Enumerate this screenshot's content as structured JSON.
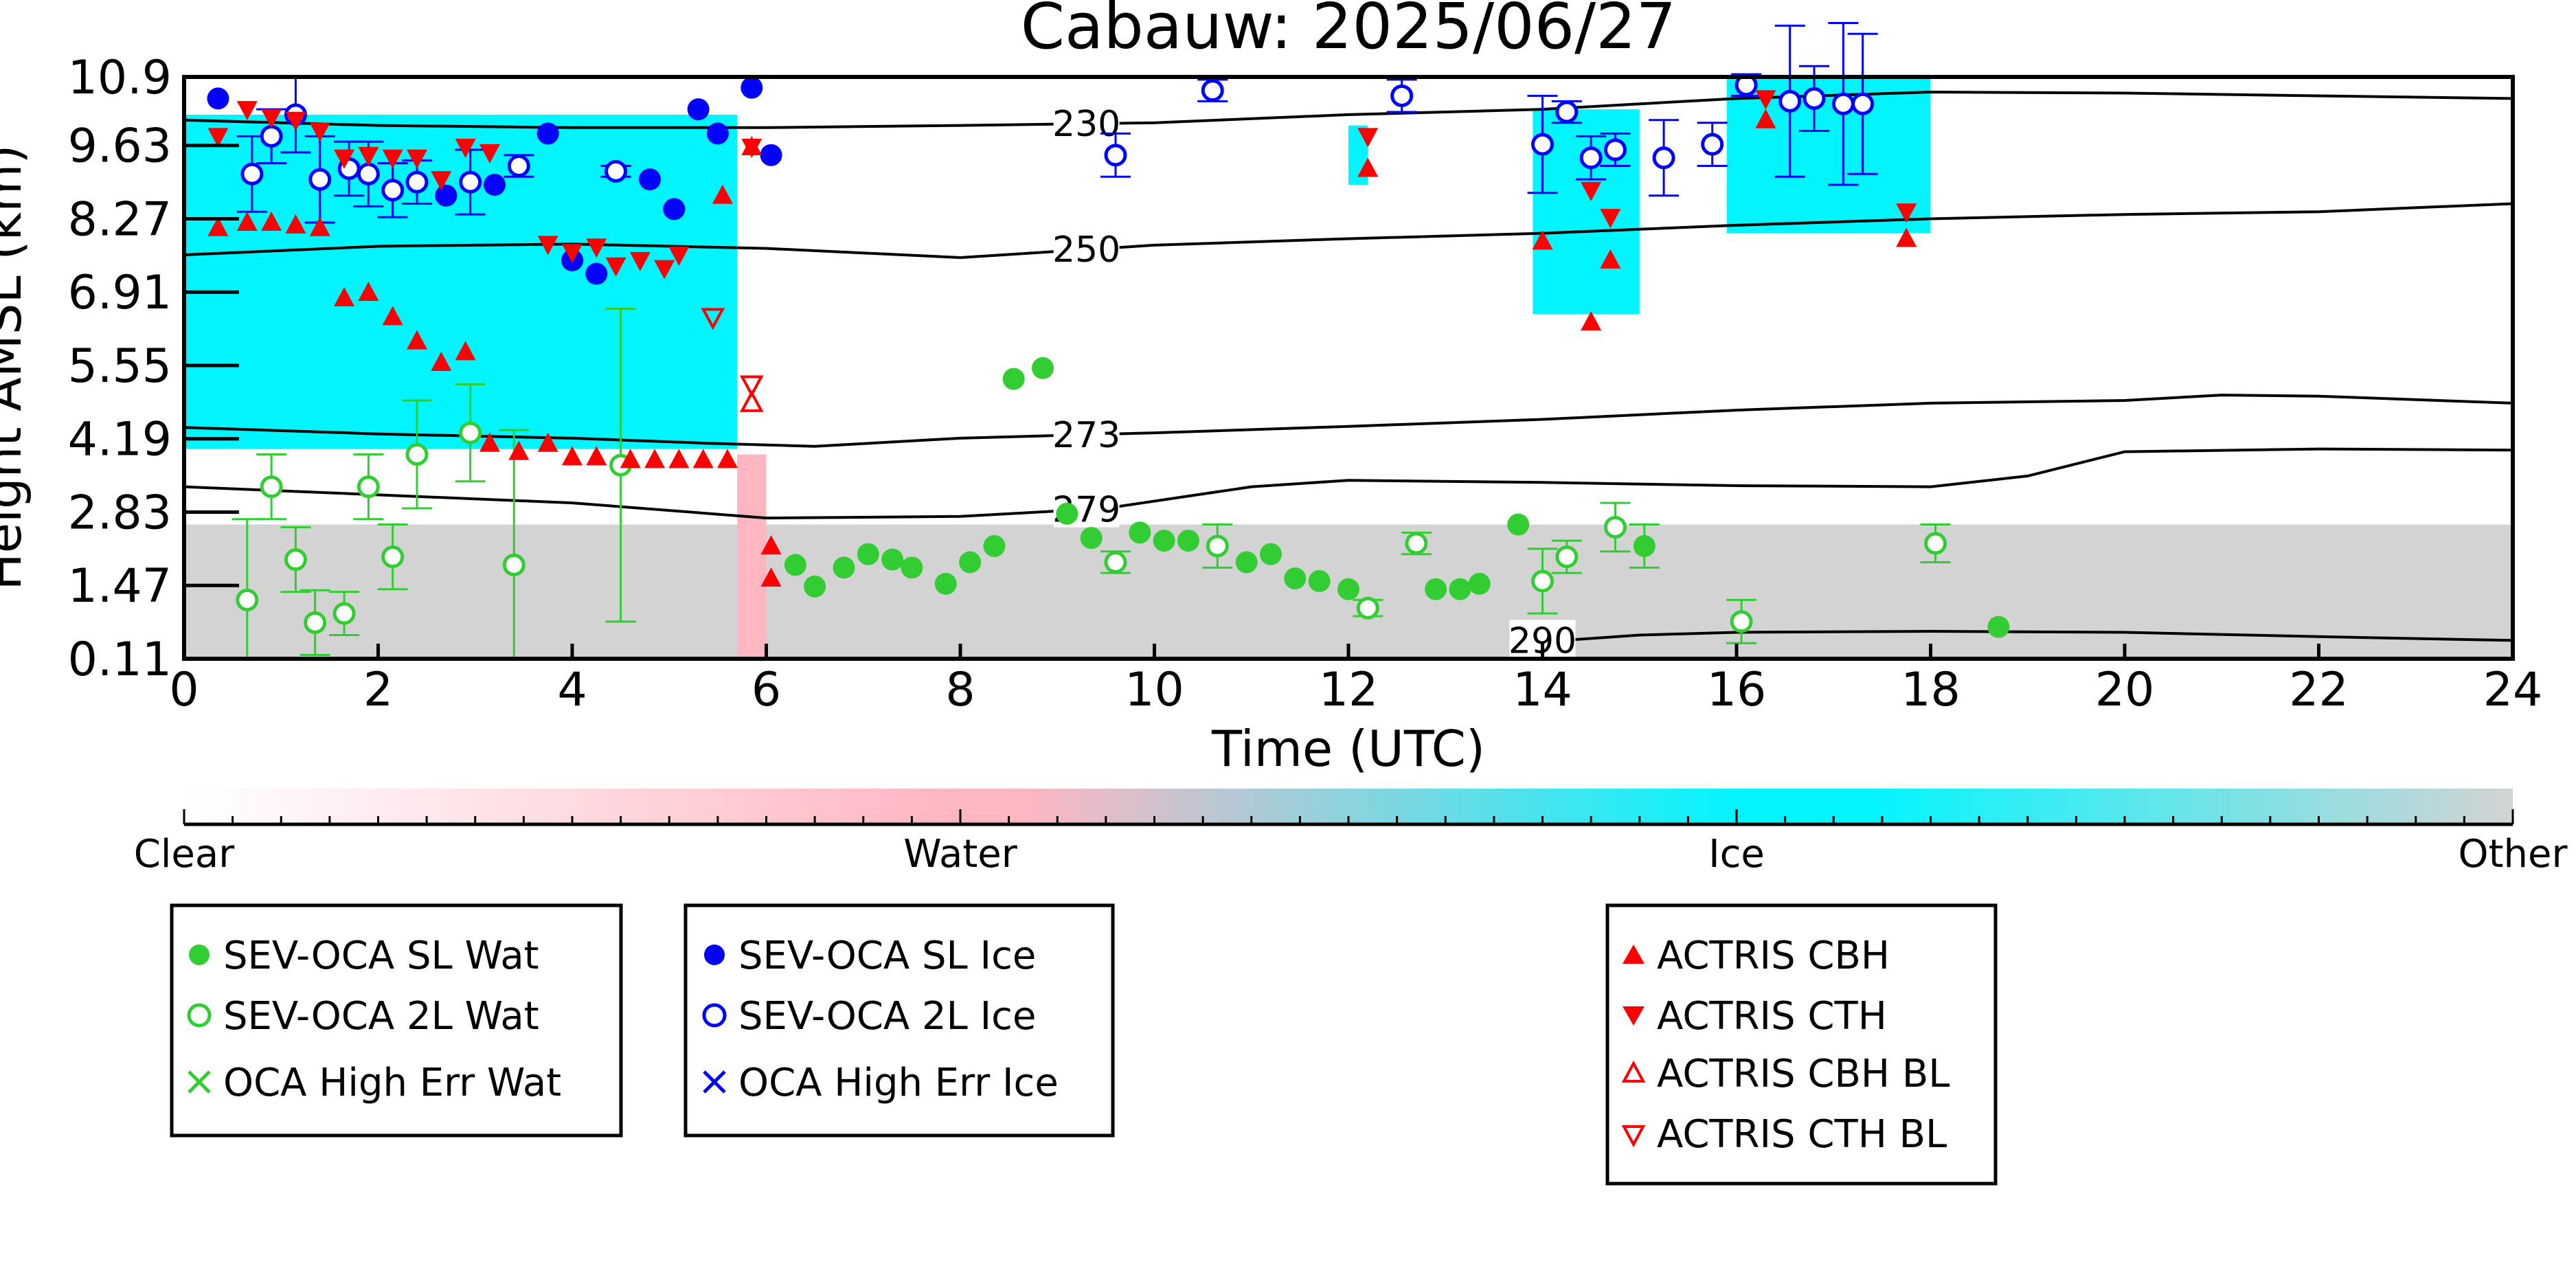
{
  "chart_data": {
    "type": "scatter",
    "title": "Cabauw: 2025/06/27",
    "xlabel": "Time (UTC)",
    "ylabel": "Height AMSL (km)",
    "xlim": [
      0,
      24
    ],
    "ylim": [
      0.11,
      10.9
    ],
    "xticks": [
      "0",
      "2",
      "4",
      "6",
      "8",
      "10",
      "12",
      "14",
      "16",
      "18",
      "20",
      "22",
      "24"
    ],
    "yticks": [
      "0.11",
      "1.47",
      "2.83",
      "4.19",
      "5.55",
      "6.91",
      "8.27",
      "9.63",
      "10.9"
    ],
    "grid": false,
    "background_classification": {
      "colorbar_labels": [
        "Clear",
        "Water",
        "Ice",
        "Other"
      ],
      "colors": {
        "clear": "#ffffff",
        "water": "#ffb6c1",
        "ice": "#00f5ff",
        "other": "#d3d3d3"
      },
      "regions": [
        {
          "class": "other",
          "x": [
            0,
            24
          ],
          "y": [
            0.11,
            2.6
          ]
        },
        {
          "class": "ice",
          "x": [
            0,
            5.7
          ],
          "y": [
            4.0,
            10.2
          ]
        },
        {
          "class": "water",
          "x": [
            5.7,
            6.0
          ],
          "y": [
            0.11,
            3.9
          ]
        },
        {
          "class": "ice",
          "x": [
            12.0,
            12.2
          ],
          "y": [
            8.9,
            10.0
          ]
        },
        {
          "class": "ice",
          "x": [
            13.9,
            15.0
          ],
          "y": [
            6.5,
            10.3
          ]
        },
        {
          "class": "ice",
          "x": [
            15.9,
            18.0
          ],
          "y": [
            8.0,
            10.9
          ]
        }
      ]
    },
    "isotherms": [
      {
        "label": "230",
        "label_x": 9.3,
        "points": [
          [
            0,
            10.1
          ],
          [
            2,
            10.0
          ],
          [
            4,
            9.96
          ],
          [
            6,
            9.96
          ],
          [
            8,
            10.0
          ],
          [
            10,
            10.05
          ],
          [
            12,
            10.2
          ],
          [
            14,
            10.3
          ],
          [
            16,
            10.5
          ],
          [
            18,
            10.62
          ],
          [
            20,
            10.6
          ],
          [
            22,
            10.55
          ],
          [
            24,
            10.5
          ]
        ]
      },
      {
        "label": "250",
        "label_x": 9.3,
        "points": [
          [
            0,
            7.6
          ],
          [
            2,
            7.76
          ],
          [
            4,
            7.8
          ],
          [
            6,
            7.72
          ],
          [
            8,
            7.55
          ],
          [
            10,
            7.78
          ],
          [
            12,
            7.9
          ],
          [
            14,
            8.0
          ],
          [
            16,
            8.15
          ],
          [
            18,
            8.27
          ],
          [
            20,
            8.35
          ],
          [
            22,
            8.4
          ],
          [
            24,
            8.55
          ]
        ]
      },
      {
        "label": "273",
        "label_x": 9.3,
        "points": [
          [
            0,
            4.4
          ],
          [
            2,
            4.28
          ],
          [
            4,
            4.2
          ],
          [
            5.5,
            4.1
          ],
          [
            6.5,
            4.05
          ],
          [
            8,
            4.2
          ],
          [
            10,
            4.3
          ],
          [
            12,
            4.42
          ],
          [
            14,
            4.55
          ],
          [
            16,
            4.72
          ],
          [
            18,
            4.85
          ],
          [
            20,
            4.9
          ],
          [
            21,
            5.0
          ],
          [
            22,
            4.98
          ],
          [
            24,
            4.85
          ]
        ]
      },
      {
        "label": "279",
        "label_x": 9.3,
        "points": [
          [
            0,
            3.3
          ],
          [
            2,
            3.15
          ],
          [
            4,
            3.0
          ],
          [
            6,
            2.72
          ],
          [
            8,
            2.75
          ],
          [
            9.5,
            2.9
          ],
          [
            11,
            3.3
          ],
          [
            12,
            3.42
          ],
          [
            14,
            3.38
          ],
          [
            16,
            3.32
          ],
          [
            18,
            3.3
          ],
          [
            19,
            3.5
          ],
          [
            20,
            3.95
          ],
          [
            22,
            4.0
          ],
          [
            24,
            3.98
          ]
        ]
      },
      {
        "label": "290",
        "label_x": 14.0,
        "points": [
          [
            14.2,
            0.45
          ],
          [
            15,
            0.55
          ],
          [
            16,
            0.6
          ],
          [
            18,
            0.62
          ],
          [
            20,
            0.6
          ],
          [
            22,
            0.52
          ],
          [
            24,
            0.45
          ]
        ]
      }
    ],
    "series": [
      {
        "name": "SEV-OCA SL Wat",
        "marker": "filled-circle",
        "color": "#32cd32",
        "points": [
          {
            "x": 6.3,
            "y": 1.85
          },
          {
            "x": 6.5,
            "y": 1.45
          },
          {
            "x": 6.8,
            "y": 1.8
          },
          {
            "x": 7.05,
            "y": 2.05
          },
          {
            "x": 7.3,
            "y": 1.95
          },
          {
            "x": 7.5,
            "y": 1.8
          },
          {
            "x": 7.85,
            "y": 1.5
          },
          {
            "x": 8.1,
            "y": 1.9
          },
          {
            "x": 8.35,
            "y": 2.2
          },
          {
            "x": 8.55,
            "y": 5.3
          },
          {
            "x": 8.85,
            "y": 5.5
          },
          {
            "x": 9.1,
            "y": 2.8
          },
          {
            "x": 9.35,
            "y": 2.35
          },
          {
            "x": 9.85,
            "y": 2.45
          },
          {
            "x": 10.1,
            "y": 2.3
          },
          {
            "x": 10.35,
            "y": 2.3
          },
          {
            "x": 10.95,
            "y": 1.9
          },
          {
            "x": 11.2,
            "y": 2.05
          },
          {
            "x": 11.45,
            "y": 1.6
          },
          {
            "x": 11.7,
            "y": 1.55
          },
          {
            "x": 12.0,
            "y": 1.4
          },
          {
            "x": 12.9,
            "y": 1.4
          },
          {
            "x": 13.15,
            "y": 1.4
          },
          {
            "x": 13.35,
            "y": 1.5
          },
          {
            "x": 13.75,
            "y": 2.6
          },
          {
            "x": 15.05,
            "y": 2.2,
            "err": 0.4
          },
          {
            "x": 18.7,
            "y": 0.7
          }
        ]
      },
      {
        "name": "SEV-OCA 2L Wat",
        "marker": "open-circle",
        "color": "#32cd32",
        "points": [
          {
            "x": 0.65,
            "y": 1.2,
            "err": 1.5
          },
          {
            "x": 0.9,
            "y": 3.3,
            "err": 0.6
          },
          {
            "x": 1.15,
            "y": 1.95,
            "err": 0.6
          },
          {
            "x": 1.35,
            "y": 0.78,
            "err": 0.6
          },
          {
            "x": 1.65,
            "y": 0.95,
            "err": 0.4
          },
          {
            "x": 1.9,
            "y": 3.3,
            "err": 0.6
          },
          {
            "x": 2.15,
            "y": 2.0,
            "err": 0.6
          },
          {
            "x": 2.4,
            "y": 3.9,
            "err": 1.0
          },
          {
            "x": 2.95,
            "y": 4.3,
            "err": 0.9
          },
          {
            "x": 3.4,
            "y": 1.85,
            "err": 2.5
          },
          {
            "x": 4.5,
            "y": 3.7,
            "err": 2.9
          },
          {
            "x": 9.6,
            "y": 1.9,
            "err": 0.2
          },
          {
            "x": 10.65,
            "y": 2.2,
            "err": 0.4
          },
          {
            "x": 12.2,
            "y": 1.05,
            "err": 0.15
          },
          {
            "x": 12.7,
            "y": 2.25,
            "err": 0.2
          },
          {
            "x": 14.0,
            "y": 1.55,
            "err": 0.6
          },
          {
            "x": 14.25,
            "y": 2.0,
            "err": 0.3
          },
          {
            "x": 14.75,
            "y": 2.55,
            "err": 0.45
          },
          {
            "x": 16.05,
            "y": 0.8,
            "err": 0.4
          },
          {
            "x": 18.05,
            "y": 2.25,
            "err": 0.35
          }
        ]
      },
      {
        "name": "OCA High Err Wat",
        "marker": "x",
        "color": "#32cd32",
        "points": []
      },
      {
        "name": "SEV-OCA SL Ice",
        "marker": "filled-circle",
        "color": "#0000ff",
        "points": [
          {
            "x": 0.35,
            "y": 10.5
          },
          {
            "x": 2.7,
            "y": 8.7
          },
          {
            "x": 3.2,
            "y": 8.9
          },
          {
            "x": 3.75,
            "y": 9.85
          },
          {
            "x": 4.0,
            "y": 7.5
          },
          {
            "x": 4.25,
            "y": 7.25
          },
          {
            "x": 4.8,
            "y": 9.0
          },
          {
            "x": 5.05,
            "y": 8.45
          },
          {
            "x": 5.3,
            "y": 10.3
          },
          {
            "x": 5.5,
            "y": 9.85
          },
          {
            "x": 5.85,
            "y": 10.7
          },
          {
            "x": 6.05,
            "y": 9.45
          }
        ]
      },
      {
        "name": "SEV-OCA 2L Ice",
        "marker": "open-circle",
        "color": "#0000ff",
        "points": [
          {
            "x": 0.7,
            "y": 9.1,
            "err": 0.7
          },
          {
            "x": 0.9,
            "y": 9.8,
            "err": 0.5
          },
          {
            "x": 1.15,
            "y": 10.2,
            "err": 0.7
          },
          {
            "x": 1.4,
            "y": 9.0,
            "err": 0.8
          },
          {
            "x": 1.7,
            "y": 9.2,
            "err": 0.5
          },
          {
            "x": 1.9,
            "y": 9.1,
            "err": 0.6
          },
          {
            "x": 2.15,
            "y": 8.8,
            "err": 0.5
          },
          {
            "x": 2.4,
            "y": 8.95,
            "err": 0.4
          },
          {
            "x": 2.95,
            "y": 8.95,
            "err": 0.6
          },
          {
            "x": 3.45,
            "y": 9.25,
            "err": 0.2
          },
          {
            "x": 4.45,
            "y": 9.15,
            "err": 0.1
          },
          {
            "x": 9.6,
            "y": 9.45,
            "err": 0.4
          },
          {
            "x": 10.6,
            "y": 10.65,
            "err": 0.2
          },
          {
            "x": 12.55,
            "y": 10.55,
            "err": 0.3
          },
          {
            "x": 14.0,
            "y": 9.65,
            "err": 0.9
          },
          {
            "x": 14.25,
            "y": 10.25,
            "err": 0.2
          },
          {
            "x": 14.5,
            "y": 9.4,
            "err": 0.4
          },
          {
            "x": 14.75,
            "y": 9.55,
            "err": 0.3
          },
          {
            "x": 15.25,
            "y": 9.4,
            "err": 0.7
          },
          {
            "x": 15.75,
            "y": 9.65,
            "err": 0.4
          },
          {
            "x": 16.1,
            "y": 10.75,
            "err": 0.2
          },
          {
            "x": 16.55,
            "y": 10.45,
            "err": 1.4
          },
          {
            "x": 16.8,
            "y": 10.5,
            "err": 0.6
          },
          {
            "x": 17.1,
            "y": 10.4,
            "err": 1.5
          },
          {
            "x": 17.3,
            "y": 10.4,
            "err": 1.3
          }
        ]
      },
      {
        "name": "OCA High Err Ice",
        "marker": "x",
        "color": "#0000ff",
        "points": []
      },
      {
        "name": "ACTRIS CBH",
        "marker": "filled-triangle-up",
        "color": "#ff0000",
        "points": [
          {
            "x": 0.35,
            "y": 8.1
          },
          {
            "x": 0.65,
            "y": 8.2
          },
          {
            "x": 0.9,
            "y": 8.2
          },
          {
            "x": 1.15,
            "y": 8.15
          },
          {
            "x": 1.4,
            "y": 8.1
          },
          {
            "x": 1.65,
            "y": 6.8
          },
          {
            "x": 1.9,
            "y": 6.9
          },
          {
            "x": 2.15,
            "y": 6.45
          },
          {
            "x": 2.4,
            "y": 6.0
          },
          {
            "x": 2.65,
            "y": 5.6
          },
          {
            "x": 2.9,
            "y": 5.8
          },
          {
            "x": 3.15,
            "y": 4.1
          },
          {
            "x": 3.45,
            "y": 3.95
          },
          {
            "x": 3.75,
            "y": 4.1
          },
          {
            "x": 4.0,
            "y": 3.85
          },
          {
            "x": 4.25,
            "y": 3.85
          },
          {
            "x": 4.6,
            "y": 3.8
          },
          {
            "x": 4.85,
            "y": 3.8
          },
          {
            "x": 5.1,
            "y": 3.8
          },
          {
            "x": 5.35,
            "y": 3.8
          },
          {
            "x": 5.6,
            "y": 3.8
          },
          {
            "x": 5.85,
            "y": 9.6
          },
          {
            "x": 5.55,
            "y": 8.7
          },
          {
            "x": 6.05,
            "y": 2.2
          },
          {
            "x": 6.05,
            "y": 1.6
          },
          {
            "x": 12.2,
            "y": 9.2
          },
          {
            "x": 14.0,
            "y": 7.85
          },
          {
            "x": 14.5,
            "y": 6.35
          },
          {
            "x": 14.7,
            "y": 7.5
          },
          {
            "x": 16.3,
            "y": 10.1
          },
          {
            "x": 17.75,
            "y": 7.9
          }
        ]
      },
      {
        "name": "ACTRIS CTH",
        "marker": "filled-triangle-down",
        "color": "#ff0000",
        "points": [
          {
            "x": 0.35,
            "y": 9.8
          },
          {
            "x": 0.65,
            "y": 10.3
          },
          {
            "x": 0.9,
            "y": 10.15
          },
          {
            "x": 1.15,
            "y": 10.1
          },
          {
            "x": 1.4,
            "y": 9.9
          },
          {
            "x": 1.65,
            "y": 9.4
          },
          {
            "x": 1.9,
            "y": 9.45
          },
          {
            "x": 2.15,
            "y": 9.4
          },
          {
            "x": 2.4,
            "y": 9.4
          },
          {
            "x": 2.65,
            "y": 9.0
          },
          {
            "x": 2.9,
            "y": 9.6
          },
          {
            "x": 3.15,
            "y": 9.5
          },
          {
            "x": 3.75,
            "y": 7.8
          },
          {
            "x": 4.0,
            "y": 7.65
          },
          {
            "x": 4.25,
            "y": 7.75
          },
          {
            "x": 4.45,
            "y": 7.4
          },
          {
            "x": 4.7,
            "y": 7.5
          },
          {
            "x": 4.95,
            "y": 7.35
          },
          {
            "x": 5.1,
            "y": 7.6
          },
          {
            "x": 5.85,
            "y": 9.6
          },
          {
            "x": 12.2,
            "y": 9.8
          },
          {
            "x": 14.5,
            "y": 8.8
          },
          {
            "x": 14.7,
            "y": 8.3
          },
          {
            "x": 16.3,
            "y": 10.5
          },
          {
            "x": 17.75,
            "y": 8.4
          }
        ]
      },
      {
        "name": "ACTRIS CBH BL",
        "marker": "open-triangle-up",
        "color": "#ff0000",
        "points": [
          {
            "x": 5.85,
            "y": 4.85
          }
        ]
      },
      {
        "name": "ACTRIS CTH BL",
        "marker": "open-triangle-down",
        "color": "#ff0000",
        "points": [
          {
            "x": 5.45,
            "y": 6.45
          },
          {
            "x": 5.85,
            "y": 5.2
          }
        ]
      }
    ]
  },
  "legends": {
    "water": [
      "SEV-OCA SL Wat",
      "SEV-OCA 2L Wat",
      "OCA High Err Wat"
    ],
    "ice": [
      "SEV-OCA SL Ice",
      "SEV-OCA 2L Ice",
      "OCA High Err Ice"
    ],
    "actris": [
      "ACTRIS CBH",
      "ACTRIS CTH",
      "ACTRIS CBH BL",
      "ACTRIS CTH BL"
    ]
  }
}
